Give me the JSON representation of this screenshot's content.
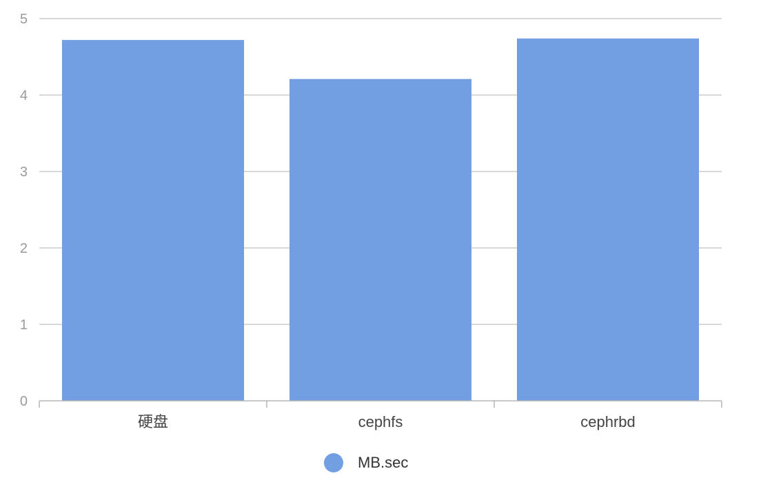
{
  "chart_data": {
    "type": "bar",
    "categories": [
      "硬盘",
      "cephfs",
      "cephrbd"
    ],
    "series": [
      {
        "name": "MB.sec",
        "values": [
          4.72,
          4.21,
          4.74
        ],
        "color": "#729ee2"
      }
    ],
    "title": "",
    "xlabel": "",
    "ylabel": "",
    "ylim": [
      0,
      5
    ],
    "yticks": [
      0,
      1,
      2,
      3,
      4,
      5
    ],
    "grid": true,
    "legend": "bottom-center"
  }
}
